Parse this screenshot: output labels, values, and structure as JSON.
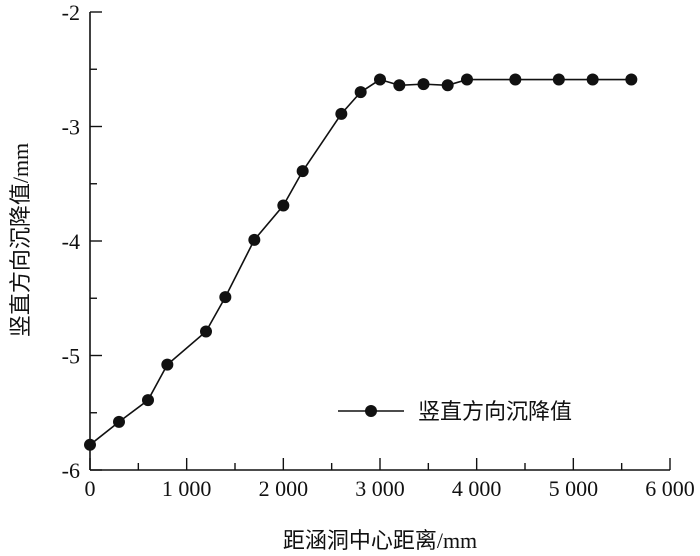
{
  "chart_data": {
    "type": "line",
    "title": "",
    "xlabel": "距涵洞中心距离/mm",
    "ylabel": "竖直方向沉降值/mm",
    "xlim": [
      0,
      6000
    ],
    "ylim": [
      -6,
      -2
    ],
    "xticks": [
      0,
      1000,
      2000,
      3000,
      4000,
      5000,
      6000
    ],
    "xtick_labels": [
      "0",
      "1 000",
      "2 000",
      "3 000",
      "4 000",
      "5 000",
      "6 000"
    ],
    "yticks": [
      -6,
      -5,
      -4,
      -3,
      -2
    ],
    "ytick_labels": [
      "-6",
      "-5",
      "-4",
      "-3",
      "-2"
    ],
    "grid": false,
    "legend_position": "bottom-right",
    "series": [
      {
        "name": "竖直方向沉降值",
        "color": "#111111",
        "marker": "circle",
        "x": [
          0,
          300,
          600,
          800,
          1200,
          1400,
          1700,
          2000,
          2200,
          2600,
          2800,
          3000,
          3200,
          3450,
          3700,
          3900,
          4400,
          4850,
          5200,
          5600
        ],
        "y": [
          -5.78,
          -5.58,
          -5.39,
          -5.08,
          -4.79,
          -4.49,
          -3.99,
          -3.69,
          -3.39,
          -2.89,
          -2.7,
          -2.59,
          -2.64,
          -2.63,
          -2.64,
          -2.59,
          -2.59,
          -2.59,
          -2.59,
          -2.59
        ]
      }
    ]
  }
}
